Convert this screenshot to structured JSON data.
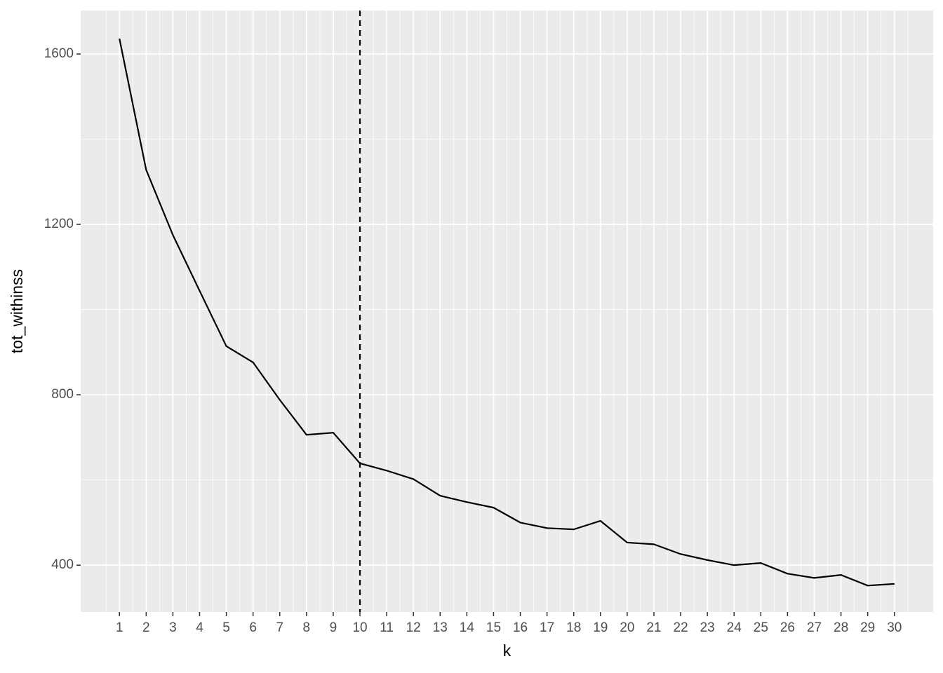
{
  "chart_data": {
    "type": "line",
    "x_label": "k",
    "y_label": "tot_withinss",
    "x": [
      1,
      2,
      3,
      4,
      5,
      6,
      7,
      8,
      9,
      10,
      11,
      12,
      13,
      14,
      15,
      16,
      17,
      18,
      19,
      20,
      21,
      22,
      23,
      24,
      25,
      26,
      27,
      28,
      29,
      30
    ],
    "series": [
      {
        "color": "#000000",
        "values": [
          1636,
          1328,
          1175,
          1044,
          914,
          876,
          788,
          706,
          711,
          639,
          622,
          602,
          563,
          548,
          535,
          500,
          487,
          484,
          504,
          453,
          449,
          426,
          412,
          400,
          405,
          380,
          370,
          377,
          352,
          356
        ]
      }
    ],
    "vline": 10,
    "xlim": [
      -0.45,
      31.45
    ],
    "xticks": [
      1,
      2,
      3,
      4,
      5,
      6,
      7,
      8,
      9,
      10,
      11,
      12,
      13,
      14,
      15,
      16,
      17,
      18,
      19,
      20,
      21,
      22,
      23,
      24,
      25,
      26,
      27,
      28,
      29,
      30
    ],
    "ylim": [
      290,
      1702
    ],
    "yticks": [
      400,
      800,
      1200,
      1600
    ],
    "grid": true
  }
}
